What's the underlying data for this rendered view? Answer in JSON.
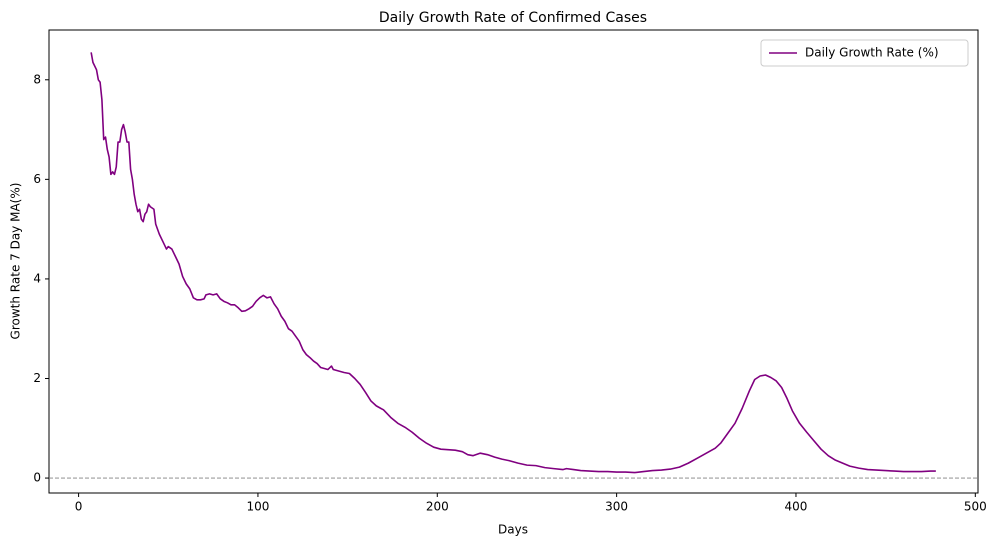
{
  "chart_data": {
    "type": "line",
    "title": "Daily Growth Rate of Confirmed Cases",
    "x_label": "Days",
    "y_label": "Growth Rate 7 Day MA(%)",
    "xlim": [
      -16.5,
      501.5
    ],
    "ylim": [
      -0.3,
      9.0
    ],
    "xticks": [
      0,
      100,
      200,
      300,
      400,
      500
    ],
    "yticks": [
      0,
      2,
      4,
      6,
      8
    ],
    "reference_line": 0,
    "legend": "upper right",
    "x": [
      7,
      8,
      10,
      11,
      12,
      13,
      14,
      15,
      16,
      17,
      18,
      19,
      20,
      21,
      22,
      23,
      24,
      25,
      26,
      27,
      28,
      29,
      30,
      31,
      32,
      33,
      34,
      35,
      36,
      37,
      38,
      39,
      40,
      42,
      43,
      45,
      47,
      49,
      50,
      52,
      54,
      56,
      58,
      60,
      62,
      64,
      66,
      68,
      70,
      71,
      73,
      75,
      77,
      79,
      81,
      83,
      85,
      87,
      89,
      91,
      93,
      95,
      97,
      99,
      101,
      103,
      105,
      107,
      109,
      111,
      113,
      115,
      117,
      119,
      121,
      123,
      125,
      127,
      129,
      131,
      133,
      135,
      137,
      139,
      141,
      142,
      145,
      148,
      151,
      154,
      157,
      160,
      163,
      166,
      170,
      174,
      178,
      182,
      186,
      190,
      194,
      198,
      202,
      206,
      210,
      214,
      217,
      220,
      224,
      228,
      232,
      236,
      240,
      245,
      250,
      255,
      260,
      265,
      270,
      272,
      276,
      280,
      285,
      290,
      295,
      300,
      305,
      310,
      315,
      320,
      325,
      330,
      335,
      340,
      345,
      350,
      355,
      358,
      362,
      366,
      370,
      374,
      377,
      380,
      383,
      386,
      389,
      392,
      395,
      398,
      402,
      406,
      410,
      414,
      418,
      422,
      426,
      430,
      435,
      440,
      445,
      450,
      455,
      460,
      465,
      470,
      475,
      478
    ],
    "series": [
      {
        "name": "Daily Growth Rate (%)",
        "color": "#800080",
        "values": [
          8.55,
          8.35,
          8.2,
          8.0,
          7.95,
          7.6,
          6.8,
          6.85,
          6.6,
          6.45,
          6.1,
          6.15,
          6.1,
          6.25,
          6.75,
          6.75,
          7.0,
          7.1,
          6.95,
          6.75,
          6.75,
          6.2,
          6.0,
          5.7,
          5.5,
          5.35,
          5.4,
          5.2,
          5.15,
          5.3,
          5.35,
          5.5,
          5.45,
          5.4,
          5.1,
          4.9,
          4.75,
          4.6,
          4.65,
          4.6,
          4.45,
          4.3,
          4.05,
          3.9,
          3.8,
          3.62,
          3.58,
          3.58,
          3.6,
          3.68,
          3.7,
          3.68,
          3.7,
          3.6,
          3.55,
          3.52,
          3.48,
          3.48,
          3.42,
          3.35,
          3.36,
          3.4,
          3.45,
          3.55,
          3.62,
          3.67,
          3.62,
          3.64,
          3.5,
          3.4,
          3.25,
          3.15,
          3.0,
          2.95,
          2.85,
          2.75,
          2.58,
          2.48,
          2.42,
          2.35,
          2.3,
          2.22,
          2.2,
          2.18,
          2.25,
          2.18,
          2.15,
          2.12,
          2.1,
          2.0,
          1.88,
          1.72,
          1.55,
          1.45,
          1.37,
          1.22,
          1.1,
          1.02,
          0.92,
          0.8,
          0.7,
          0.62,
          0.58,
          0.57,
          0.56,
          0.53,
          0.47,
          0.45,
          0.5,
          0.47,
          0.42,
          0.38,
          0.35,
          0.3,
          0.26,
          0.25,
          0.21,
          0.19,
          0.17,
          0.19,
          0.17,
          0.15,
          0.14,
          0.13,
          0.13,
          0.12,
          0.12,
          0.11,
          0.13,
          0.15,
          0.16,
          0.18,
          0.22,
          0.3,
          0.4,
          0.5,
          0.6,
          0.7,
          0.9,
          1.1,
          1.4,
          1.75,
          1.98,
          2.05,
          2.07,
          2.02,
          1.95,
          1.82,
          1.6,
          1.35,
          1.1,
          0.92,
          0.75,
          0.58,
          0.45,
          0.36,
          0.3,
          0.24,
          0.2,
          0.17,
          0.16,
          0.15,
          0.14,
          0.13,
          0.13,
          0.13,
          0.14,
          0.14
        ]
      }
    ]
  }
}
